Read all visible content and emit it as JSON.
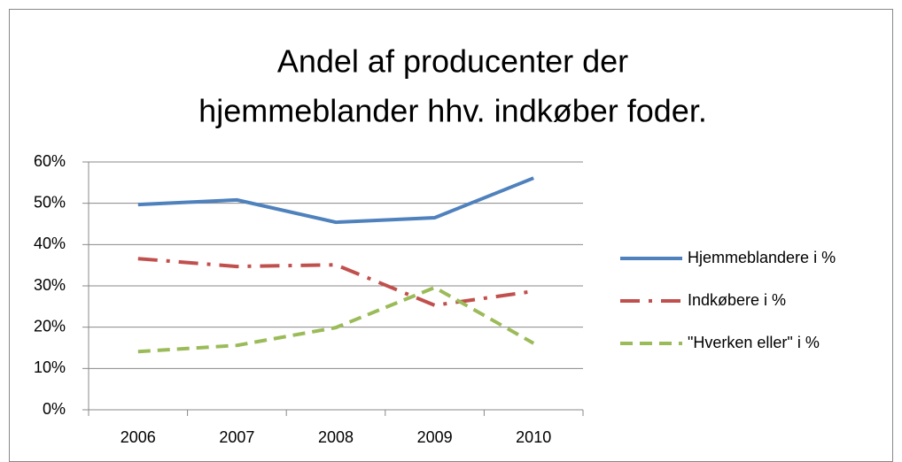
{
  "chart_data": {
    "type": "line",
    "title": [
      "Andel af producenter der",
      "hjemmeblander hhv. indkøber foder."
    ],
    "categories": [
      "2006",
      "2007",
      "2008",
      "2009",
      "2010"
    ],
    "series": [
      {
        "name": "Hjemmeblandere i %",
        "color": "#4f81bd",
        "style": "solid",
        "values": [
          49.7,
          50.8,
          45.4,
          46.5,
          56.1
        ]
      },
      {
        "name": "Indkøbere i %",
        "color": "#c0504d",
        "style": "dashdot",
        "values": [
          36.6,
          34.7,
          35.1,
          25.3,
          28.7
        ]
      },
      {
        "name": "\"Hverken eller\" i %",
        "color": "#9bbb59",
        "style": "dashed",
        "values": [
          14.1,
          15.6,
          19.9,
          29.6,
          16.1
        ]
      }
    ],
    "ylim": [
      0,
      60
    ],
    "yticks": [
      {
        "value": 0,
        "label": "0%"
      },
      {
        "value": 10,
        "label": "10%"
      },
      {
        "value": 20,
        "label": "20%"
      },
      {
        "value": 30,
        "label": "30%"
      },
      {
        "value": 40,
        "label": "40%"
      },
      {
        "value": 50,
        "label": "50%"
      },
      {
        "value": 60,
        "label": "60%"
      }
    ],
    "grid": true,
    "legend": "right"
  }
}
